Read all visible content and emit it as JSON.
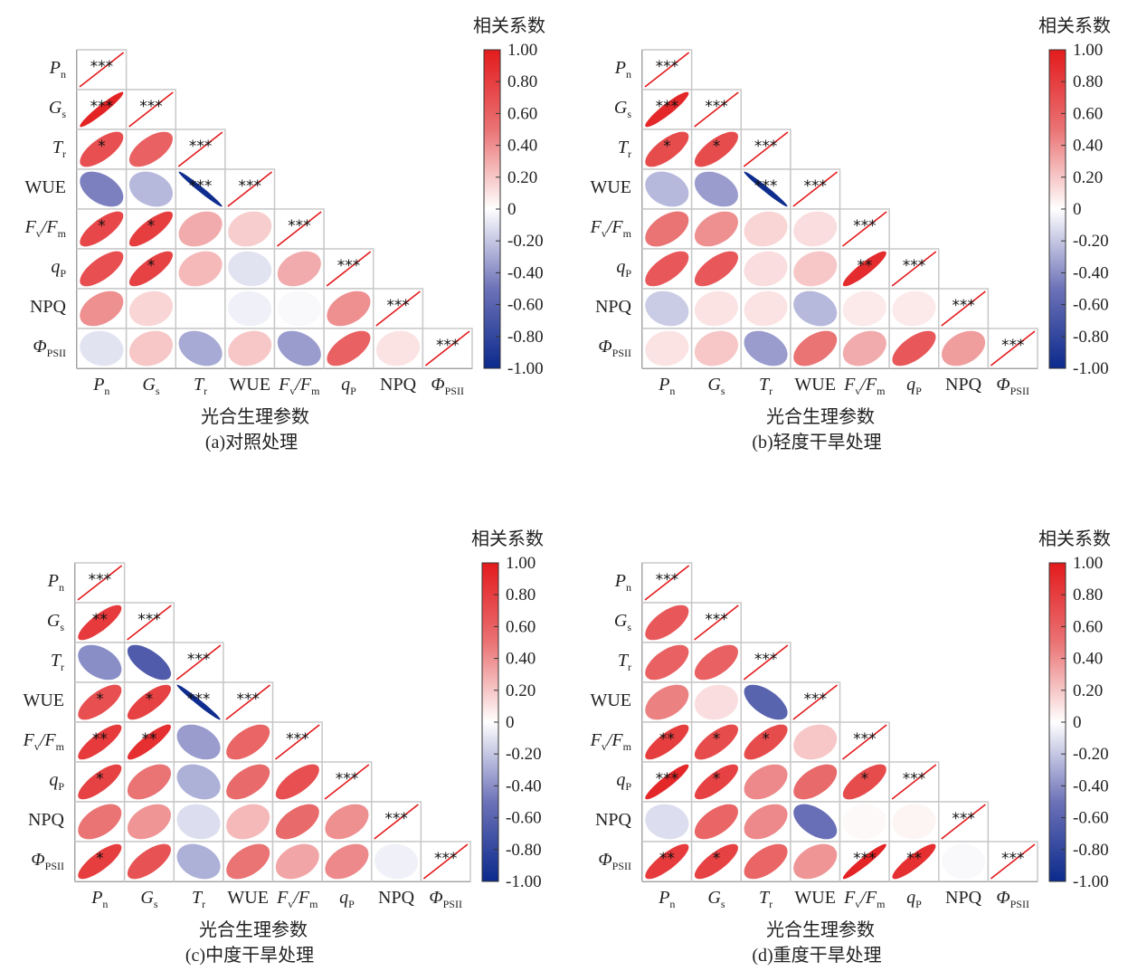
{
  "variables": [
    {
      "t": "P",
      "s": "n",
      "italic": true
    },
    {
      "t": "G",
      "s": "s",
      "italic": true
    },
    {
      "t": "T",
      "s": "r",
      "italic": true
    },
    {
      "t": "WUE",
      "italic": false
    },
    {
      "t": "F",
      "s": "v",
      "t2": "/F",
      "s2": "m",
      "italic": true
    },
    {
      "t": "q",
      "s": "P",
      "italic": true
    },
    {
      "t": "NPQ",
      "italic": false
    },
    {
      "t": "Φ",
      "s": "PSII",
      "italic": true
    }
  ],
  "colorbar": {
    "title": "相关系数",
    "range": [
      -1,
      1
    ],
    "ticks": [
      1,
      0.8,
      0.6,
      0.4,
      0.2,
      0,
      -0.2,
      -0.4,
      -0.6,
      -0.8,
      -1
    ],
    "tick_labels": [
      "1.00",
      "0.80",
      "0.60",
      "0.40",
      "0.20",
      "0",
      "-0.20",
      "-0.40",
      "-0.60",
      "-0.80",
      "-1.00"
    ],
    "colors": {
      "neg1": "#0b2a8c",
      "neg05": "#6d72b8",
      "zero": "#ffffff",
      "pos05": "#ea7374",
      "pos1": "#e31a1c"
    }
  },
  "diagonal": {
    "value": 1,
    "sig": "***"
  },
  "chart_data": [
    {
      "type": "heatmap",
      "panel": "a",
      "caption": "(a)对照处理",
      "xlabel": "光合生理参数",
      "r": [
        [],
        [
          0.95
        ],
        [
          0.7,
          0.6
        ],
        [
          -0.45,
          -0.25,
          -0.98
        ],
        [
          0.75,
          0.8,
          0.3,
          0.18
        ],
        [
          0.7,
          0.78,
          0.25,
          -0.1,
          0.3
        ],
        [
          0.4,
          0.15,
          0.0,
          -0.05,
          -0.02,
          0.4
        ],
        [
          -0.1,
          0.2,
          -0.3,
          0.2,
          -0.35,
          0.6,
          0.1
        ]
      ],
      "sig": [
        [],
        [
          "***"
        ],
        [
          "*",
          ""
        ],
        [
          "",
          "",
          "***"
        ],
        [
          "*",
          "*",
          "",
          ""
        ],
        [
          "",
          "*",
          "",
          "",
          ""
        ],
        [
          "",
          "",
          "",
          "",
          "",
          ""
        ],
        [
          "",
          "",
          "",
          "",
          "",
          "",
          ""
        ]
      ]
    },
    {
      "type": "heatmap",
      "panel": "b",
      "caption": "(b)轻度干旱处理",
      "xlabel": "光合生理参数",
      "r": [
        [],
        [
          0.92
        ],
        [
          0.72,
          0.72
        ],
        [
          -0.25,
          -0.35,
          -0.98
        ],
        [
          0.5,
          0.4,
          0.15,
          0.12
        ],
        [
          0.65,
          0.65,
          0.12,
          0.2,
          0.9
        ],
        [
          -0.18,
          0.1,
          0.1,
          -0.25,
          0.08,
          0.08
        ],
        [
          0.1,
          0.2,
          -0.35,
          0.5,
          0.3,
          0.65,
          0.35
        ]
      ],
      "sig": [
        [],
        [
          "***"
        ],
        [
          "*",
          "*"
        ],
        [
          "",
          "",
          "***"
        ],
        [
          "",
          "",
          "",
          ""
        ],
        [
          "",
          "",
          "",
          "",
          "**"
        ],
        [
          "",
          "",
          "",
          "",
          "",
          ""
        ],
        [
          "",
          "",
          "",
          "",
          "",
          "",
          ""
        ]
      ]
    },
    {
      "type": "heatmap",
      "panel": "c",
      "caption": "(c)中度干旱处理",
      "xlabel": "光合生理参数",
      "r": [
        [],
        [
          0.82
        ],
        [
          -0.4,
          -0.65
        ],
        [
          0.7,
          0.78,
          -0.98
        ],
        [
          0.82,
          0.88,
          -0.35,
          0.58
        ],
        [
          0.78,
          0.5,
          -0.28,
          0.55,
          0.7
        ],
        [
          0.5,
          0.38,
          -0.12,
          0.25,
          0.55,
          0.4
        ],
        [
          0.8,
          0.68,
          -0.28,
          0.5,
          0.32,
          0.42,
          -0.05
        ]
      ],
      "sig": [
        [],
        [
          "**"
        ],
        [
          "",
          ""
        ],
        [
          "*",
          "*",
          "***"
        ],
        [
          "**",
          "**",
          "",
          ""
        ],
        [
          "*",
          "",
          "",
          "",
          ""
        ],
        [
          "",
          "",
          "",
          "",
          "",
          ""
        ],
        [
          "*",
          "",
          "",
          "",
          "",
          "",
          ""
        ]
      ]
    },
    {
      "type": "heatmap",
      "panel": "d",
      "caption": "(d)重度干旱处理",
      "xlabel": "光合生理参数",
      "r": [
        [],
        [
          0.65
        ],
        [
          0.6,
          0.6
        ],
        [
          0.45,
          0.12,
          -0.6
        ],
        [
          0.8,
          0.72,
          0.72,
          0.2
        ],
        [
          0.92,
          0.78,
          0.42,
          0.55,
          0.72
        ],
        [
          -0.12,
          0.58,
          0.42,
          -0.52,
          0.02,
          0.04
        ],
        [
          0.82,
          0.78,
          0.58,
          0.38,
          0.95,
          0.88,
          -0.02
        ]
      ],
      "sig": [
        [],
        [
          ""
        ],
        [
          "",
          ""
        ],
        [
          "",
          "",
          ""
        ],
        [
          "**",
          "*",
          "*",
          ""
        ],
        [
          "***",
          "*",
          "",
          "",
          "*"
        ],
        [
          "",
          "",
          "",
          "",
          "",
          ""
        ],
        [
          "**",
          "*",
          "",
          "",
          "***",
          "**",
          ""
        ]
      ]
    }
  ]
}
